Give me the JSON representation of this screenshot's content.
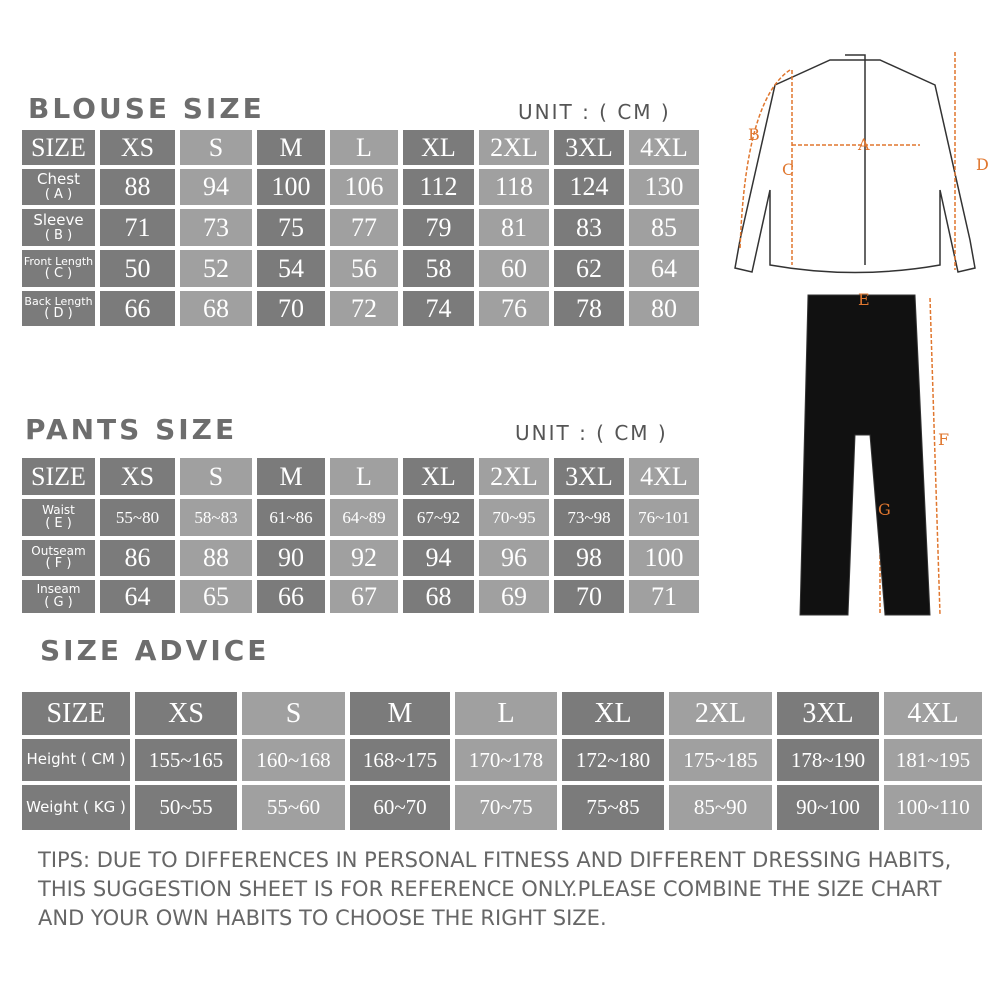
{
  "blouse": {
    "title": "BLOUSE SIZE",
    "unit": "UNIT : ( CM )",
    "header": [
      "SIZE",
      "XS",
      "S",
      "M",
      "L",
      "XL",
      "2XL",
      "3XL",
      "4XL"
    ],
    "rows": [
      {
        "label": "Chest",
        "code": "( A )",
        "values": [
          "88",
          "94",
          "100",
          "106",
          "112",
          "118",
          "124",
          "130"
        ]
      },
      {
        "label": "Sleeve",
        "code": "( B )",
        "values": [
          "71",
          "73",
          "75",
          "77",
          "79",
          "81",
          "83",
          "85"
        ]
      },
      {
        "label": "Front Length",
        "code": "( C )",
        "values": [
          "50",
          "52",
          "54",
          "56",
          "58",
          "60",
          "62",
          "64"
        ]
      },
      {
        "label": "Back Length",
        "code": "( D )",
        "values": [
          "66",
          "68",
          "70",
          "72",
          "74",
          "76",
          "78",
          "80"
        ]
      }
    ]
  },
  "pants": {
    "title": "PANTS SIZE",
    "unit": "UNIT : ( CM )",
    "header": [
      "SIZE",
      "XS",
      "S",
      "M",
      "L",
      "XL",
      "2XL",
      "3XL",
      "4XL"
    ],
    "rows": [
      {
        "label": "Waist",
        "code": "( E )",
        "values": [
          "55~80",
          "58~83",
          "61~86",
          "64~89",
          "67~92",
          "70~95",
          "73~98",
          "76~101"
        ]
      },
      {
        "label": "Outseam",
        "code": "( F )",
        "values": [
          "86",
          "88",
          "90",
          "92",
          "94",
          "96",
          "98",
          "100"
        ]
      },
      {
        "label": "Inseam",
        "code": "( G )",
        "values": [
          "64",
          "65",
          "66",
          "67",
          "68",
          "69",
          "70",
          "71"
        ]
      }
    ]
  },
  "advice": {
    "title": "SIZE ADVICE",
    "header": [
      "SIZE",
      "XS",
      "S",
      "M",
      "L",
      "XL",
      "2XL",
      "3XL",
      "4XL"
    ],
    "rows": [
      {
        "label": "Height ( CM )",
        "values": [
          "155~165",
          "160~168",
          "168~175",
          "170~178",
          "172~180",
          "175~185",
          "178~190",
          "181~195"
        ]
      },
      {
        "label": "Weight ( KG )",
        "values": [
          "50~55",
          "55~60",
          "60~70",
          "70~75",
          "75~85",
          "85~90",
          "90~100",
          "100~110"
        ]
      }
    ]
  },
  "tips": "TIPS: DUE TO DIFFERENCES IN PERSONAL FITNESS AND DIFFERENT DRESSING HABITS, THIS SUGGESTION SHEET IS FOR REFERENCE ONLY.PLEASE COMBINE THE SIZE CHART AND YOUR OWN HABITS TO CHOOSE THE RIGHT SIZE.",
  "diagram": {
    "jersey_labels": [
      "A",
      "B",
      "C",
      "D"
    ],
    "pants_labels": [
      "E",
      "F",
      "G"
    ],
    "measure_color": "#e0772f"
  }
}
